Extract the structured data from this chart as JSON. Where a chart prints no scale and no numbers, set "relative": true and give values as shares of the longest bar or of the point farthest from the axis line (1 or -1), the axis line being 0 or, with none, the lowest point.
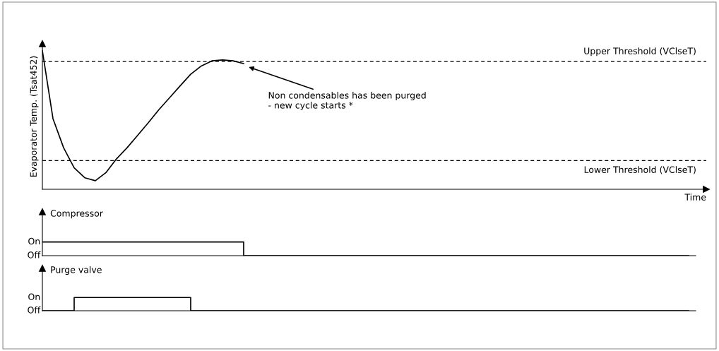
{
  "chart_data": [
    {
      "type": "line",
      "relative": true,
      "ylabel": "Evaporator Temp. (Tsat452)",
      "xlabel": "Time",
      "categories": [
        null,
        null,
        null,
        null,
        null,
        null,
        null,
        null,
        null,
        null,
        null,
        null,
        null,
        null,
        null,
        null,
        null,
        null,
        null,
        null,
        null,
        null,
        null,
        null,
        null,
        null,
        null,
        null,
        null,
        null,
        null,
        null,
        null,
        null,
        null,
        null,
        null,
        null,
        null,
        null,
        null,
        null,
        null,
        null,
        null,
        null,
        null,
        null,
        null,
        null,
        null,
        null,
        null,
        null,
        null,
        null,
        null,
        null,
        null,
        null,
        null,
        null
      ],
      "series": [
        {
          "color": "#000000",
          "values": [
            1.0,
            0.51,
            0.3,
            0.155,
            0.083,
            0.062,
            0.12,
            0.22,
            0.3,
            0.39,
            0.48,
            0.575,
            0.66,
            0.746,
            0.83,
            0.89,
            0.927,
            0.933,
            0.927,
            0.907,
            null,
            null,
            null,
            null,
            null,
            null,
            null,
            null,
            null,
            null,
            null,
            null,
            null,
            null,
            null,
            null,
            null,
            null,
            null,
            null,
            null,
            null,
            null,
            null,
            null,
            null,
            null,
            null,
            null,
            null,
            null,
            null,
            null,
            null,
            null,
            null,
            null,
            null,
            null,
            null,
            null,
            null
          ]
        }
      ],
      "ref_lines": [
        {
          "axis": "y",
          "value": 0.922,
          "label": "Upper Threshold (VClseT)",
          "line_style": "dashed",
          "color": "#000000"
        },
        {
          "axis": "y",
          "value": 0.207,
          "label": "Lower Threshold (VClseT)",
          "line_style": "dashed",
          "color": "#000000"
        }
      ],
      "annotations": [
        "Non condensables has been purged\n- new cycle starts *"
      ],
      "legend": false
    },
    {
      "type": "step",
      "title": "Compressor",
      "categories": [
        null,
        null,
        null,
        null,
        null,
        null,
        null,
        null,
        null,
        null,
        null,
        null,
        null,
        null,
        null,
        null,
        null,
        null,
        null,
        null,
        null,
        null,
        null,
        null,
        null,
        null,
        null,
        null,
        null,
        null,
        null,
        null,
        null,
        null,
        null,
        null,
        null,
        null,
        null,
        null,
        null,
        null,
        null,
        null,
        null,
        null,
        null,
        null,
        null,
        null,
        null,
        null,
        null,
        null,
        null,
        null,
        null,
        null,
        null,
        null,
        null,
        null
      ],
      "series": [
        {
          "color": "#000000",
          "values": [
            1,
            1,
            1,
            1,
            1,
            1,
            1,
            1,
            1,
            1,
            1,
            1,
            1,
            1,
            1,
            1,
            1,
            1,
            1,
            0,
            0,
            0,
            0,
            0,
            0,
            0,
            0,
            0,
            0,
            0,
            0,
            0,
            0,
            0,
            0,
            0,
            0,
            0,
            0,
            0,
            0,
            0,
            0,
            0,
            0,
            0,
            0,
            0,
            0,
            0,
            0,
            0,
            0,
            0,
            0,
            0,
            0,
            0,
            0,
            0,
            0,
            0
          ]
        }
      ],
      "relative": true,
      "annotations": [
        "On",
        "Off"
      ],
      "legend": false
    },
    {
      "type": "step",
      "title": "Purge valve",
      "categories": [
        null,
        null,
        null,
        null,
        null,
        null,
        null,
        null,
        null,
        null,
        null,
        null,
        null,
        null,
        null,
        null,
        null,
        null,
        null,
        null,
        null,
        null,
        null,
        null,
        null,
        null,
        null,
        null,
        null,
        null,
        null,
        null,
        null,
        null,
        null,
        null,
        null,
        null,
        null,
        null,
        null,
        null,
        null,
        null,
        null,
        null,
        null,
        null,
        null,
        null,
        null,
        null,
        null,
        null,
        null,
        null,
        null,
        null,
        null,
        null,
        null,
        null
      ],
      "series": [
        {
          "color": "#000000",
          "values": [
            0,
            0,
            0,
            1,
            1,
            1,
            1,
            1,
            1,
            1,
            1,
            1,
            1,
            1,
            0,
            0,
            0,
            0,
            0,
            0,
            0,
            0,
            0,
            0,
            0,
            0,
            0,
            0,
            0,
            0,
            0,
            0,
            0,
            0,
            0,
            0,
            0,
            0,
            0,
            0,
            0,
            0,
            0,
            0,
            0,
            0,
            0,
            0,
            0,
            0,
            0,
            0,
            0,
            0,
            0,
            0,
            0,
            0,
            0,
            0,
            0,
            0
          ]
        }
      ],
      "relative": true,
      "annotations": [
        "On",
        "Off"
      ],
      "legend": false
    }
  ]
}
